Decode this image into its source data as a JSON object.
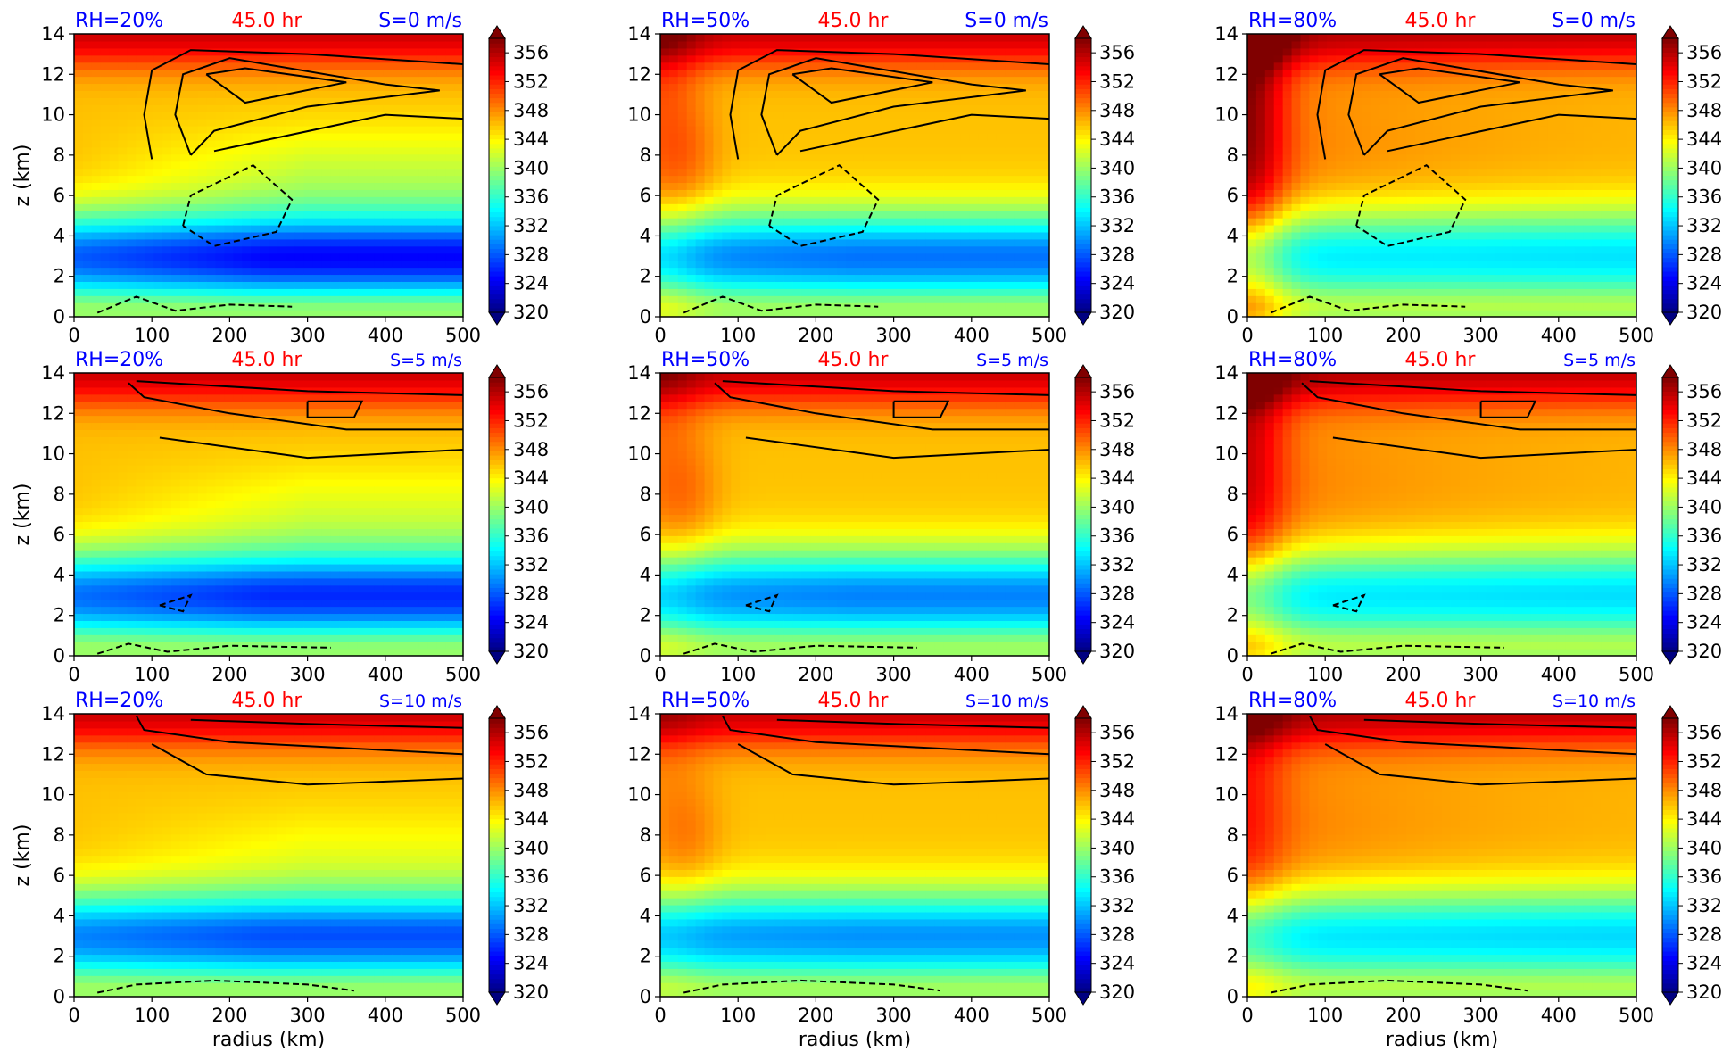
{
  "colors": {
    "rh": "#0000ff",
    "time": "#ff0000",
    "shear": "#0000ff",
    "contour": "#000000"
  },
  "colorbar": {
    "ticks": [
      "320",
      "324",
      "328",
      "332",
      "336",
      "340",
      "344",
      "348",
      "352",
      "356"
    ],
    "extend": "both",
    "colormap": "jet",
    "range": [
      320,
      358
    ]
  },
  "chart_data": [
    {
      "type": "heatmap",
      "rh": "RH=20%",
      "time": "45.0 hr",
      "shear": "S=0 m/s",
      "ylabel": "z (km)",
      "xlabel": "",
      "xticks": [
        "0",
        "100",
        "200",
        "300",
        "400",
        "500"
      ],
      "yticks": [
        "0",
        "2",
        "4",
        "6",
        "8",
        "10",
        "12",
        "14"
      ],
      "xlim": [
        0,
        500
      ],
      "ylim": [
        0,
        14
      ],
      "rh_value": 20,
      "shear_value": 0
    },
    {
      "type": "heatmap",
      "rh": "RH=50%",
      "time": "45.0 hr",
      "shear": "S=0 m/s",
      "ylabel": "",
      "xlabel": "",
      "xticks": [
        "0",
        "100",
        "200",
        "300",
        "400",
        "500"
      ],
      "yticks": [
        "0",
        "2",
        "4",
        "6",
        "8",
        "10",
        "12",
        "14"
      ],
      "xlim": [
        0,
        500
      ],
      "ylim": [
        0,
        14
      ],
      "rh_value": 50,
      "shear_value": 0
    },
    {
      "type": "heatmap",
      "rh": "RH=80%",
      "time": "45.0 hr",
      "shear": "S=0 m/s",
      "ylabel": "",
      "xlabel": "",
      "xticks": [
        "0",
        "100",
        "200",
        "300",
        "400",
        "500"
      ],
      "yticks": [
        "0",
        "2",
        "4",
        "6",
        "8",
        "10",
        "12",
        "14"
      ],
      "xlim": [
        0,
        500
      ],
      "ylim": [
        0,
        14
      ],
      "rh_value": 80,
      "shear_value": 0
    },
    {
      "type": "heatmap",
      "rh": "RH=20%",
      "time": "45.0 hr",
      "shear": "S=5 m/s",
      "ylabel": "z (km)",
      "xlabel": "",
      "xticks": [
        "0",
        "100",
        "200",
        "300",
        "400",
        "500"
      ],
      "yticks": [
        "0",
        "2",
        "4",
        "6",
        "8",
        "10",
        "12",
        "14"
      ],
      "xlim": [
        0,
        500
      ],
      "ylim": [
        0,
        14
      ],
      "rh_value": 20,
      "shear_value": 5
    },
    {
      "type": "heatmap",
      "rh": "RH=50%",
      "time": "45.0 hr",
      "shear": "S=5 m/s",
      "ylabel": "",
      "xlabel": "",
      "xticks": [
        "0",
        "100",
        "200",
        "300",
        "400",
        "500"
      ],
      "yticks": [
        "0",
        "2",
        "4",
        "6",
        "8",
        "10",
        "12",
        "14"
      ],
      "xlim": [
        0,
        500
      ],
      "ylim": [
        0,
        14
      ],
      "rh_value": 50,
      "shear_value": 5
    },
    {
      "type": "heatmap",
      "rh": "RH=80%",
      "time": "45.0 hr",
      "shear": "S=5 m/s",
      "ylabel": "",
      "xlabel": "",
      "xticks": [
        "0",
        "100",
        "200",
        "300",
        "400",
        "500"
      ],
      "yticks": [
        "0",
        "2",
        "4",
        "6",
        "8",
        "10",
        "12",
        "14"
      ],
      "xlim": [
        0,
        500
      ],
      "ylim": [
        0,
        14
      ],
      "rh_value": 80,
      "shear_value": 5
    },
    {
      "type": "heatmap",
      "rh": "RH=20%",
      "time": "45.0 hr",
      "shear": "S=10 m/s",
      "ylabel": "z (km)",
      "xlabel": "radius (km)",
      "xticks": [
        "0",
        "100",
        "200",
        "300",
        "400",
        "500"
      ],
      "yticks": [
        "0",
        "2",
        "4",
        "6",
        "8",
        "10",
        "12",
        "14"
      ],
      "xlim": [
        0,
        500
      ],
      "ylim": [
        0,
        14
      ],
      "rh_value": 20,
      "shear_value": 10
    },
    {
      "type": "heatmap",
      "rh": "RH=50%",
      "time": "45.0 hr",
      "shear": "S=10 m/s",
      "ylabel": "",
      "xlabel": "radius (km)",
      "xticks": [
        "0",
        "100",
        "200",
        "300",
        "400",
        "500"
      ],
      "yticks": [
        "0",
        "2",
        "4",
        "6",
        "8",
        "10",
        "12",
        "14"
      ],
      "xlim": [
        0,
        500
      ],
      "ylim": [
        0,
        14
      ],
      "rh_value": 50,
      "shear_value": 10
    },
    {
      "type": "heatmap",
      "rh": "RH=80%",
      "time": "45.0 hr",
      "shear": "S=10 m/s",
      "ylabel": "",
      "xlabel": "radius (km)",
      "xticks": [
        "0",
        "100",
        "200",
        "300",
        "400",
        "500"
      ],
      "yticks": [
        "0",
        "2",
        "4",
        "6",
        "8",
        "10",
        "12",
        "14"
      ],
      "xlim": [
        0,
        500
      ],
      "ylim": [
        0,
        14
      ],
      "rh_value": 80,
      "shear_value": 10
    }
  ]
}
